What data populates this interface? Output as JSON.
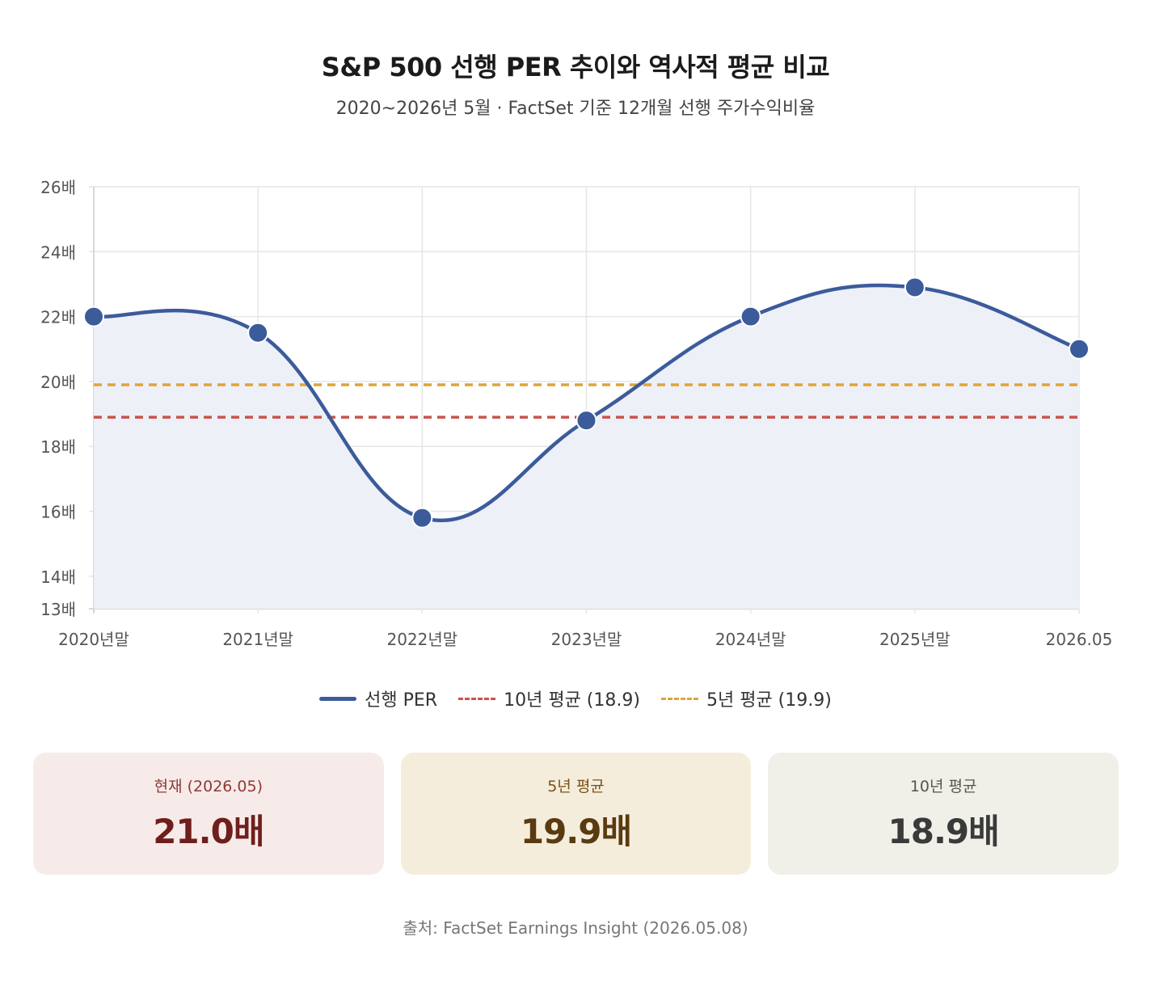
{
  "header": {
    "title": "S&P 500 선행 PER 추이와 역사적 평균 비교",
    "subtitle": "2020~2026년 5월 · FactSet 기준 12개월 선행 주가수익비율"
  },
  "chart_data": {
    "type": "line",
    "categories": [
      "2020년말",
      "2021년말",
      "2022년말",
      "2023년말",
      "2024년말",
      "2025년말",
      "2026.05"
    ],
    "series": [
      {
        "name": "선행 PER",
        "values": [
          22.0,
          21.5,
          15.8,
          18.8,
          22.0,
          22.9,
          21.0
        ],
        "color": "#3b5b9b",
        "style": "solid",
        "area_fill": "#eef0f7"
      },
      {
        "name": "10년 평균 (18.9)",
        "values": [
          18.9,
          18.9,
          18.9,
          18.9,
          18.9,
          18.9,
          18.9
        ],
        "color": "#c9534c",
        "style": "dashed"
      },
      {
        "name": "5년 평균 (19.9)",
        "values": [
          19.9,
          19.9,
          19.9,
          19.9,
          19.9,
          19.9,
          19.9
        ],
        "color": "#dea43a",
        "style": "dashed"
      }
    ],
    "ylim": [
      13,
      26
    ],
    "yticks": [
      13,
      14,
      16,
      18,
      20,
      22,
      24,
      26
    ],
    "ytick_suffix": "배",
    "grid": true,
    "legend_position": "bottom"
  },
  "cards": [
    {
      "label": "현재 (2026.05)",
      "value": "21.0배"
    },
    {
      "label": "5년 평균",
      "value": "19.9배"
    },
    {
      "label": "10년 평균",
      "value": "18.9배"
    }
  ],
  "footer": {
    "source": "출처: FactSet Earnings Insight (2026.05.08)"
  }
}
